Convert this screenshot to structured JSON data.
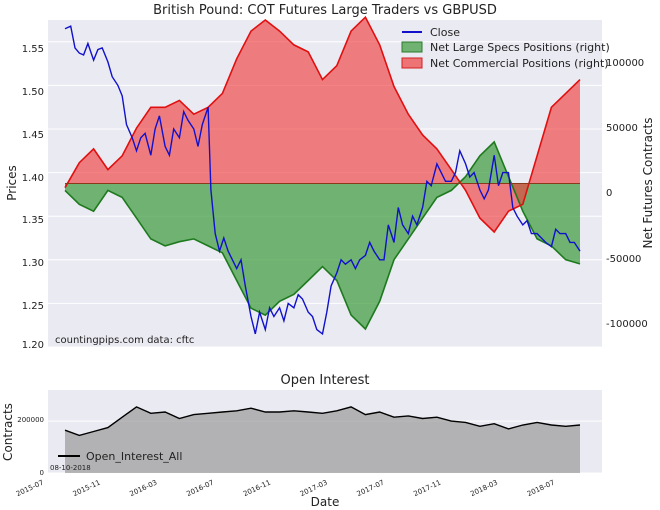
{
  "chart_data": [
    {
      "type": "line",
      "title": "British Pound: COT Futures Large Traders vs GBPUSD",
      "ylabel": "Prices",
      "y2label": "Net Futures Contracts",
      "ylim": [
        1.2,
        1.575
      ],
      "y2lim": [
        -118000,
        118000
      ],
      "yticks": [
        "1.20",
        "1.25",
        "1.30",
        "1.35",
        "1.40",
        "1.45",
        "1.50",
        "1.55"
      ],
      "y2ticks": [
        "-100000",
        "-50000",
        "0",
        "50000",
        "100000"
      ],
      "annotation": "countingpips.com     data: cftc",
      "legend_position": "upper right",
      "colors": {
        "close": "#1111cc",
        "specs": "#3a9a3a",
        "commercial": "#f04040",
        "background": "#eaeaf2"
      },
      "legend": {
        "close": "Close",
        "specs": "Net Large Specs Positions (right)",
        "commercial": "Net Commercial Positions (right)"
      },
      "series": [
        {
          "name": "Close",
          "axis": "left",
          "x": [
            0.0,
            0.4,
            0.7,
            1.0,
            1.3,
            1.6,
            2.0,
            2.3,
            2.6,
            3.0,
            3.3,
            3.7,
            4.0,
            4.3,
            4.7,
            5.0,
            5.3,
            5.6,
            6.0,
            6.3,
            6.6,
            7.0,
            7.3,
            7.6,
            8.0,
            8.3,
            8.6,
            9.0,
            9.3,
            9.6,
            10.0,
            10.2,
            10.5,
            10.8,
            11.1,
            11.4,
            11.7,
            12.0,
            12.3,
            12.6,
            13.0,
            13.3,
            13.6,
            14.0,
            14.3,
            14.6,
            15.0,
            15.3,
            15.6,
            16.0,
            16.3,
            16.6,
            17.0,
            17.3,
            17.6,
            18.0,
            18.3,
            18.6,
            19.0,
            19.3,
            19.6,
            20.0,
            20.3,
            20.6,
            21.0,
            21.3,
            21.6,
            22.0,
            22.3,
            22.6,
            23.0,
            23.3,
            23.6,
            24.0,
            24.3,
            24.6,
            25.0,
            25.3,
            25.6,
            26.0,
            26.3,
            26.6,
            27.0,
            27.3,
            27.6,
            28.0,
            28.3,
            28.6,
            29.0,
            29.3,
            29.6,
            30.0,
            30.3,
            30.6,
            31.0,
            31.3,
            31.6,
            32.0,
            32.3,
            32.6,
            33.0,
            33.3,
            33.6,
            34.0,
            34.3,
            34.6,
            35.0,
            35.3,
            35.6,
            36.0
          ],
          "y": [
            1.565,
            1.568,
            1.543,
            1.537,
            1.535,
            1.548,
            1.529,
            1.541,
            1.543,
            1.527,
            1.51,
            1.5,
            1.488,
            1.455,
            1.44,
            1.425,
            1.44,
            1.445,
            1.42,
            1.45,
            1.465,
            1.43,
            1.42,
            1.45,
            1.44,
            1.47,
            1.46,
            1.45,
            1.43,
            1.455,
            1.475,
            1.38,
            1.33,
            1.31,
            1.325,
            1.31,
            1.3,
            1.29,
            1.3,
            1.27,
            1.235,
            1.215,
            1.24,
            1.22,
            1.245,
            1.235,
            1.245,
            1.23,
            1.25,
            1.245,
            1.26,
            1.255,
            1.24,
            1.235,
            1.22,
            1.215,
            1.24,
            1.27,
            1.285,
            1.3,
            1.295,
            1.3,
            1.29,
            1.3,
            1.305,
            1.32,
            1.31,
            1.3,
            1.3,
            1.34,
            1.32,
            1.36,
            1.34,
            1.33,
            1.35,
            1.34,
            1.36,
            1.39,
            1.385,
            1.41,
            1.4,
            1.39,
            1.39,
            1.4,
            1.425,
            1.41,
            1.395,
            1.4,
            1.38,
            1.37,
            1.38,
            1.42,
            1.385,
            1.4,
            1.4,
            1.36,
            1.35,
            1.34,
            1.345,
            1.33,
            1.33,
            1.325,
            1.32,
            1.315,
            1.335,
            1.33,
            1.33,
            1.32,
            1.32,
            1.31
          ]
        },
        {
          "name": "Net Large Specs Positions (right)",
          "axis": "right",
          "x": [
            0,
            1,
            2,
            3,
            4,
            5,
            6,
            7,
            8,
            9,
            10,
            11,
            12,
            13,
            14,
            15,
            16,
            17,
            18,
            19,
            20,
            21,
            22,
            23,
            24,
            25,
            26,
            27,
            28,
            29,
            30,
            31,
            32,
            33,
            34,
            35,
            36
          ],
          "y": [
            -5000,
            -15000,
            -20000,
            -5000,
            -10000,
            -25000,
            -40000,
            -45000,
            -42000,
            -40000,
            -45000,
            -50000,
            -70000,
            -90000,
            -95000,
            -85000,
            -80000,
            -70000,
            -60000,
            -70000,
            -95000,
            -105000,
            -85000,
            -55000,
            -40000,
            -25000,
            -10000,
            -5000,
            5000,
            20000,
            30000,
            5000,
            -20000,
            -40000,
            -45000,
            -55000,
            -58000
          ]
        },
        {
          "name": "Net Commercial Positions (right)",
          "axis": "right",
          "x": [
            0,
            1,
            2,
            3,
            4,
            5,
            6,
            7,
            8,
            9,
            10,
            11,
            12,
            13,
            14,
            15,
            16,
            17,
            18,
            19,
            20,
            21,
            22,
            23,
            24,
            25,
            26,
            27,
            28,
            29,
            30,
            31,
            32,
            33,
            34,
            35,
            36
          ],
          "y": [
            -3000,
            15000,
            25000,
            10000,
            20000,
            40000,
            55000,
            55000,
            60000,
            50000,
            55000,
            65000,
            90000,
            110000,
            118000,
            110000,
            100000,
            95000,
            75000,
            85000,
            110000,
            120000,
            100000,
            70000,
            50000,
            35000,
            25000,
            10000,
            -5000,
            -25000,
            -35000,
            -20000,
            -15000,
            20000,
            55000,
            65000,
            75000
          ]
        },
        {
          "name": "Open_Interest_All",
          "axis": "oi",
          "x": [
            0,
            1,
            2,
            3,
            4,
            5,
            6,
            7,
            8,
            9,
            10,
            11,
            12,
            13,
            14,
            15,
            16,
            17,
            18,
            19,
            20,
            21,
            22,
            23,
            24,
            25,
            26,
            27,
            28,
            29,
            30,
            31,
            32,
            33,
            34,
            35,
            36
          ],
          "y": [
            165000,
            145000,
            160000,
            175000,
            215000,
            255000,
            230000,
            235000,
            210000,
            225000,
            230000,
            235000,
            240000,
            250000,
            235000,
            235000,
            240000,
            235000,
            230000,
            240000,
            255000,
            225000,
            235000,
            215000,
            220000,
            210000,
            215000,
            200000,
            195000,
            180000,
            190000,
            170000,
            185000,
            195000,
            185000,
            180000,
            185000
          ]
        }
      ]
    },
    {
      "type": "area",
      "title": "Open Interest",
      "xlabel": "Date",
      "ylabel": "Contracts",
      "ylim": [
        0,
        320000
      ],
      "yticks": [
        "0",
        "200000"
      ],
      "xticks": [
        "2015-07",
        "2015-11",
        "2016-03",
        "2016-07",
        "2016-11",
        "2017-03",
        "2017-07",
        "2017-11",
        "2018-03",
        "2018-07"
      ],
      "legend": "Open_Interest_All",
      "date_label": "08-10-2018"
    }
  ]
}
